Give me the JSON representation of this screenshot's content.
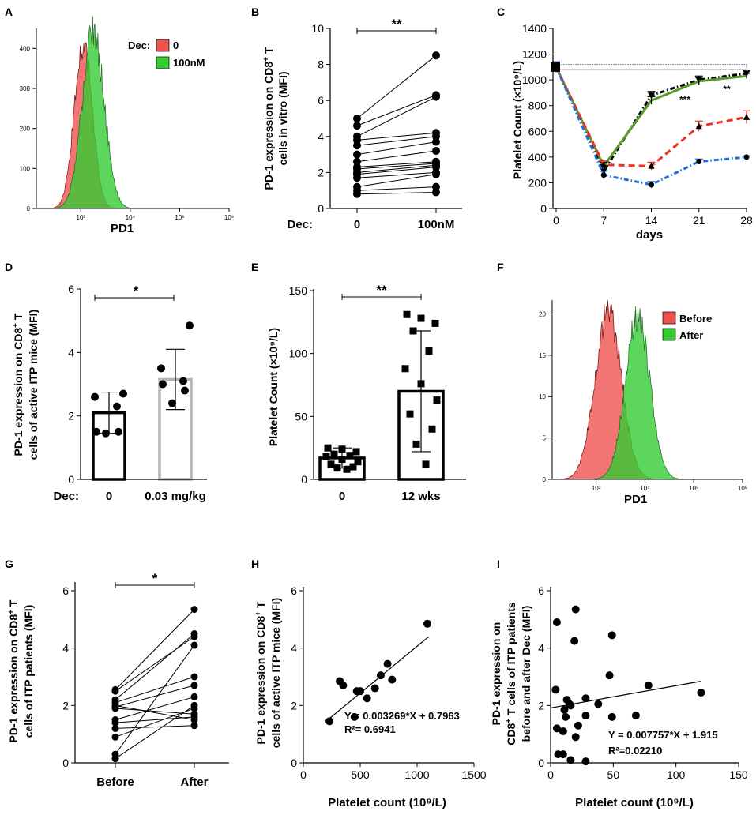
{
  "chart_data": [
    {
      "panel": "A",
      "type": "histogram",
      "xlabel": "PD1",
      "x_ticks": [
        "10³",
        "10⁴",
        "10⁵",
        "10⁶"
      ],
      "y_ticks": [
        "0",
        "100",
        "200",
        "300",
        "400"
      ],
      "ylim": [
        0,
        450
      ],
      "legend_title": "Dec:",
      "series": [
        {
          "name": "0",
          "color": "#ef5350",
          "peak_log10": 3.05,
          "peak": 415,
          "sd": 0.18,
          "width": 0.26
        },
        {
          "name": "100nM",
          "color": "#33cc33",
          "peak_log10": 3.25,
          "peak": 445,
          "sd": 0.22,
          "width": 0.36
        }
      ]
    },
    {
      "panel": "B",
      "type": "paired-line",
      "ylabel": "PD-1 expression on CD8⁺ T cells in vitro (MFI)",
      "group_title": "Dec:",
      "categories": [
        "0",
        "100nM"
      ],
      "y_ticks": [
        "0",
        "2",
        "4",
        "6",
        "8",
        "10"
      ],
      "ylim": [
        0,
        10
      ],
      "significance": "**",
      "pairs": [
        [
          5.0,
          8.5
        ],
        [
          4.6,
          6.3
        ],
        [
          4.0,
          6.2
        ],
        [
          3.8,
          4.2
        ],
        [
          3.5,
          4.0
        ],
        [
          3.0,
          3.7
        ],
        [
          2.6,
          3.2
        ],
        [
          2.3,
          2.6
        ],
        [
          2.2,
          2.5
        ],
        [
          2.0,
          2.4
        ],
        [
          1.9,
          2.3
        ],
        [
          1.7,
          2.0
        ],
        [
          1.2,
          1.9
        ],
        [
          1.0,
          1.2
        ],
        [
          0.8,
          0.9
        ]
      ]
    },
    {
      "panel": "C",
      "type": "line",
      "xlabel": "days",
      "ylabel": "Platelet  Count (×10⁹/L)",
      "x": [
        0,
        7,
        14,
        21,
        28
      ],
      "x_ticks": [
        "0",
        "7",
        "14",
        "21",
        "28"
      ],
      "y_ticks": [
        "0",
        "200",
        "400",
        "600",
        "800",
        "1000",
        "1200",
        "1400"
      ],
      "ylim": [
        0,
        1400
      ],
      "reference_band": [
        1080,
        1120
      ],
      "annotations": [
        {
          "x": 18,
          "y": 870,
          "text": "***"
        },
        {
          "x": 25,
          "y": 880,
          "text": "**"
        }
      ],
      "series": [
        {
          "name": "black",
          "color": "#000000",
          "values": [
            1100,
            290,
            880,
            1000,
            1050
          ],
          "errors": [
            40,
            30,
            30,
            30,
            20
          ]
        },
        {
          "name": "green",
          "color": "#5a9a2a",
          "values": [
            1100,
            330,
            840,
            990,
            1030
          ],
          "errors": [
            40,
            30,
            30,
            30,
            20
          ]
        },
        {
          "name": "red",
          "color": "#ee3322",
          "values": [
            1100,
            340,
            330,
            640,
            710
          ],
          "errors": [
            40,
            30,
            30,
            40,
            50
          ]
        },
        {
          "name": "blue",
          "color": "#1f6fd6",
          "values": [
            1100,
            260,
            185,
            365,
            400
          ],
          "errors": [
            40,
            30,
            25,
            20,
            10
          ]
        }
      ]
    },
    {
      "panel": "D",
      "type": "bar",
      "ylabel": "PD-1 expression on CD8⁺ T cells of  active ITP mice (MFI)",
      "group_title": "Dec:",
      "categories": [
        "0",
        "0.03 mg/kg"
      ],
      "y_ticks": [
        "0",
        "2",
        "4",
        "6"
      ],
      "ylim": [
        0,
        6
      ],
      "significance": "*",
      "series": [
        {
          "name": "0",
          "value": 2.1,
          "sd": 0.65,
          "bar_color": "#000000",
          "points": [
            2.7,
            2.6,
            2.3,
            1.5,
            1.5,
            1.45
          ]
        },
        {
          "name": "0.03 mg/kg",
          "value": 3.15,
          "sd": 0.95,
          "bar_color": "#b3b3b3",
          "points": [
            4.85,
            3.5,
            3.1,
            3.0,
            2.8,
            2.4
          ]
        }
      ]
    },
    {
      "panel": "E",
      "type": "bar",
      "ylabel": "Platelet  Count (×10⁹/L)",
      "categories": [
        "0",
        "12 wks"
      ],
      "y_ticks": [
        "0",
        "50",
        "100",
        "150"
      ],
      "ylim": [
        0,
        150
      ],
      "significance": "**",
      "series": [
        {
          "name": "0",
          "value": 17,
          "sd": 8,
          "points": [
            25,
            24,
            22,
            20,
            19,
            18,
            16,
            14,
            12,
            10,
            9,
            8
          ]
        },
        {
          "name": "12 wks",
          "value": 70,
          "sd": 48,
          "points": [
            131,
            128,
            124,
            118,
            102,
            88,
            76,
            63,
            52,
            40,
            28,
            12
          ]
        }
      ]
    },
    {
      "panel": "F",
      "type": "histogram",
      "xlabel": "PD1",
      "x_ticks": [
        "10³",
        "10⁴",
        "10⁵",
        "10⁶"
      ],
      "y_ticks": [
        "0",
        "5",
        "10",
        "15",
        "20"
      ],
      "ylim": [
        0,
        21
      ],
      "series": [
        {
          "name": "Before",
          "color": "#ef5350",
          "peak_log10": 3.25,
          "peak": 20.3,
          "sd": 0.27,
          "width": 0.33
        },
        {
          "name": "After",
          "color": "#33cc33",
          "peak_log10": 3.85,
          "peak": 19.5,
          "sd": 0.25,
          "width": 0.32
        }
      ]
    },
    {
      "panel": "G",
      "type": "paired-line",
      "ylabel": "PD-1 expression on CD8⁺ T cells of ITP patients (MFI)",
      "categories": [
        "Before",
        "After"
      ],
      "y_ticks": [
        "0",
        "2",
        "4",
        "6"
      ],
      "ylim": [
        0,
        6
      ],
      "significance": "*",
      "pairs": [
        [
          2.55,
          5.35
        ],
        [
          2.5,
          4.4
        ],
        [
          2.2,
          4.5
        ],
        [
          2.1,
          3.0
        ],
        [
          2.0,
          1.5
        ],
        [
          1.95,
          2.7
        ],
        [
          1.9,
          1.7
        ],
        [
          1.5,
          2.3
        ],
        [
          1.4,
          1.6
        ],
        [
          1.2,
          1.3
        ],
        [
          0.9,
          1.9
        ],
        [
          0.3,
          4.1
        ],
        [
          0.15,
          2.0
        ]
      ]
    },
    {
      "panel": "H",
      "type": "scatter",
      "xlabel": "Platelet  count (10⁹/L)",
      "ylabel": "PD-1 expression on CD8⁺ T cells of  active ITP mice (MFI)",
      "x_ticks": [
        "0",
        "500",
        "1000",
        "1500"
      ],
      "y_ticks": [
        "0",
        "2",
        "4",
        "6"
      ],
      "xlim": [
        0,
        1500
      ],
      "ylim": [
        0,
        6
      ],
      "points": [
        [
          230,
          1.45
        ],
        [
          320,
          2.85
        ],
        [
          350,
          2.7
        ],
        [
          450,
          1.6
        ],
        [
          470,
          2.5
        ],
        [
          560,
          2.25
        ],
        [
          630,
          2.6
        ],
        [
          680,
          3.05
        ],
        [
          740,
          3.45
        ],
        [
          780,
          2.9
        ],
        [
          1090,
          4.85
        ],
        [
          500,
          2.5
        ]
      ],
      "fit": {
        "slope": 0.003269,
        "intercept": 0.7963,
        "x_range": [
          230,
          1100
        ]
      },
      "equation": "Y = 0.003269*X + 0.7963",
      "r2": "R²= 0.6941"
    },
    {
      "panel": "I",
      "type": "scatter",
      "xlabel": "Platelet  count (10⁹/L)",
      "ylabel": "PD-1 expression on CD8⁺ T cells of ITP patients before and after Dec  (MFI)",
      "x_ticks": [
        "0",
        "50",
        "100",
        "150"
      ],
      "y_ticks": [
        "0",
        "2",
        "4",
        "6"
      ],
      "xlim": [
        0,
        150
      ],
      "ylim": [
        0,
        6
      ],
      "points": [
        [
          5,
          4.9
        ],
        [
          20,
          5.35
        ],
        [
          19,
          4.25
        ],
        [
          49,
          4.45
        ],
        [
          47,
          3.05
        ],
        [
          78,
          2.7
        ],
        [
          120,
          2.45
        ],
        [
          4,
          2.55
        ],
        [
          13,
          2.2
        ],
        [
          15,
          2.05
        ],
        [
          16,
          2.0
        ],
        [
          11,
          1.85
        ],
        [
          12,
          1.6
        ],
        [
          28,
          2.25
        ],
        [
          38,
          2.05
        ],
        [
          5,
          1.2
        ],
        [
          10,
          1.1
        ],
        [
          22,
          1.3
        ],
        [
          28,
          1.65
        ],
        [
          49,
          1.6
        ],
        [
          68,
          1.65
        ],
        [
          6,
          0.3
        ],
        [
          10,
          0.3
        ],
        [
          16,
          0.1
        ],
        [
          28,
          0.05
        ],
        [
          20,
          0.9
        ]
      ],
      "fit": {
        "slope": 0.007757,
        "intercept": 1.915,
        "x_range": [
          0,
          120
        ]
      },
      "equation": "Y = 0.007757*X + 1.915",
      "r2": "R²=0.02210"
    }
  ]
}
